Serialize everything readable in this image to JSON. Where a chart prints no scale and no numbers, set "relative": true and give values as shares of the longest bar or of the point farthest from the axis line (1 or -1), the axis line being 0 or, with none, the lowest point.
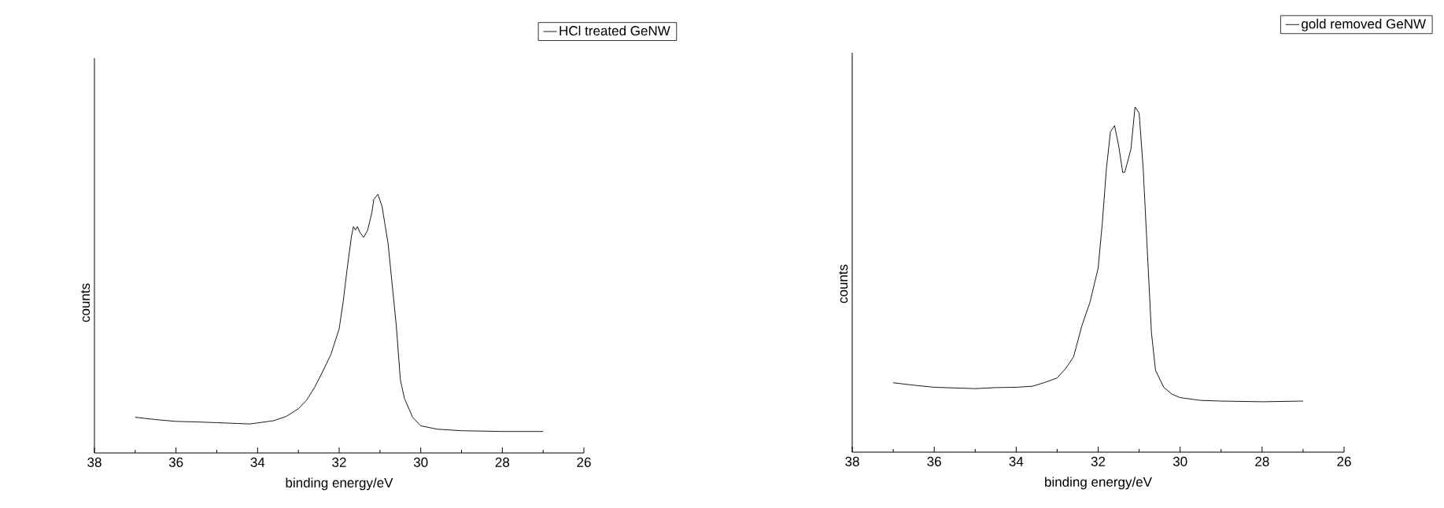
{
  "chart_data": [
    {
      "type": "line",
      "xlabel": "binding energy/eV",
      "ylabel": "counts",
      "relative": true,
      "legend": "top right",
      "xlim": [
        38,
        26
      ],
      "xticks": [
        38,
        36,
        34,
        32,
        30,
        28,
        26
      ],
      "series": [
        {
          "name": "HCl treated GeNW",
          "color": "#000000",
          "x": [
            37,
            36.5,
            36,
            35.5,
            35,
            34.5,
            34.2,
            34,
            33.6,
            33.3,
            33.0,
            32.8,
            32.6,
            32.4,
            32.2,
            32.0,
            31.9,
            31.8,
            31.7,
            31.65,
            31.6,
            31.55,
            31.5,
            31.4,
            31.3,
            31.2,
            31.15,
            31.05,
            30.95,
            30.8,
            30.6,
            30.5,
            30.4,
            30.2,
            30.0,
            29.6,
            29.0,
            28.0,
            27.0
          ],
          "values": [
            0.138,
            0.129,
            0.122,
            0.12,
            0.117,
            0.114,
            0.112,
            0.116,
            0.125,
            0.141,
            0.171,
            0.204,
            0.254,
            0.316,
            0.382,
            0.48,
            0.586,
            0.717,
            0.836,
            0.875,
            0.862,
            0.875,
            0.855,
            0.833,
            0.862,
            0.928,
            0.98,
            1,
            0.954,
            0.809,
            0.493,
            0.283,
            0.211,
            0.138,
            0.105,
            0.092,
            0.086,
            0.083,
            0.083
          ]
        }
      ]
    },
    {
      "type": "line",
      "xlabel": "binding energy/eV",
      "ylabel": "counts",
      "relative": true,
      "legend": "top right",
      "xlim": [
        38,
        26
      ],
      "xticks": [
        38,
        36,
        34,
        32,
        30,
        28,
        26
      ],
      "series": [
        {
          "name": "gold removed GeNW",
          "color": "#000000",
          "x": [
            37,
            36.5,
            36,
            35.5,
            35,
            34.5,
            34,
            33.6,
            33.3,
            33.0,
            32.8,
            32.6,
            32.4,
            32.2,
            32.0,
            31.9,
            31.8,
            31.7,
            31.6,
            31.5,
            31.4,
            31.35,
            31.2,
            31.1,
            31.0,
            30.9,
            30.8,
            30.7,
            30.6,
            30.4,
            30.2,
            30.0,
            29.5,
            29.0,
            28.0,
            27.0
          ],
          "values": [
            0.201,
            0.194,
            0.188,
            0.186,
            0.184,
            0.187,
            0.188,
            0.191,
            0.202,
            0.215,
            0.241,
            0.276,
            0.365,
            0.434,
            0.533,
            0.661,
            0.819,
            0.928,
            0.946,
            0.888,
            0.81,
            0.811,
            0.878,
            1,
            0.982,
            0.819,
            0.582,
            0.346,
            0.237,
            0.188,
            0.168,
            0.158,
            0.15,
            0.148,
            0.146,
            0.148
          ]
        }
      ]
    }
  ]
}
